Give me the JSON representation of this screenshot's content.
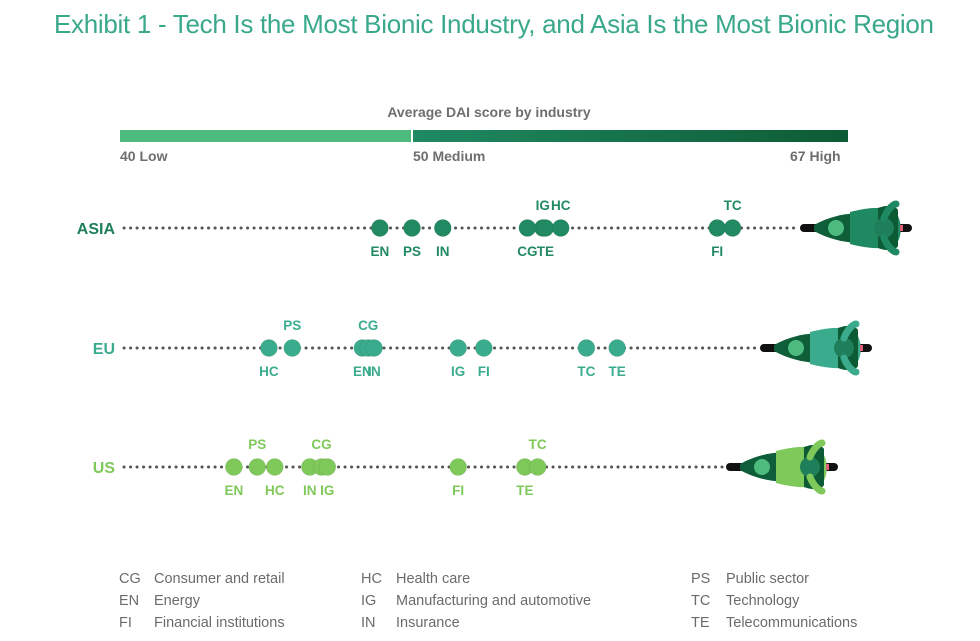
{
  "title": "Exhibit 1 - Tech Is the Most Bionic Industry, and Asia Is the Most Bionic Region",
  "chart_data": {
    "type": "scatter",
    "title": "Exhibit 1 - Tech Is the Most Bionic Industry, and Asia Is the Most Bionic Region",
    "subtitle": "Average DAI score by industry",
    "xlabel": "Average DAI score by industry",
    "ylabel": "",
    "xlim": [
      40,
      67
    ],
    "scale_labels": [
      {
        "value": 40,
        "label": "40 Low"
      },
      {
        "value": 50,
        "label": "50 Medium"
      },
      {
        "value": 67,
        "label": "67 High"
      }
    ],
    "series": [
      {
        "name": "ASIA",
        "color": "#218a62",
        "points": [
          {
            "code": "EN",
            "value": 48.9,
            "label_pos": "below"
          },
          {
            "code": "PS",
            "value": 50.0,
            "label_pos": "below"
          },
          {
            "code": "IN",
            "value": 51.2,
            "label_pos": "below"
          },
          {
            "code": "CG",
            "value": 54.5,
            "label_pos": "below"
          },
          {
            "code": "IG",
            "value": 55.1,
            "label_pos": "above"
          },
          {
            "code": "TE",
            "value": 55.2,
            "label_pos": "below"
          },
          {
            "code": "HC",
            "value": 55.8,
            "label_pos": "above"
          },
          {
            "code": "FI",
            "value": 61.9,
            "label_pos": "below"
          },
          {
            "code": "TC",
            "value": 62.5,
            "label_pos": "above"
          }
        ]
      },
      {
        "name": "EU",
        "color": "#3aab8d",
        "points": [
          {
            "code": "HC",
            "value": 45.1,
            "label_pos": "below"
          },
          {
            "code": "PS",
            "value": 45.9,
            "label_pos": "above"
          },
          {
            "code": "EN",
            "value": 48.3,
            "label_pos": "below"
          },
          {
            "code": "CG",
            "value": 48.5,
            "label_pos": "above"
          },
          {
            "code": "IN",
            "value": 48.7,
            "label_pos": "below"
          },
          {
            "code": "IG",
            "value": 51.8,
            "label_pos": "below"
          },
          {
            "code": "FI",
            "value": 52.8,
            "label_pos": "below"
          },
          {
            "code": "TC",
            "value": 56.8,
            "label_pos": "below"
          },
          {
            "code": "TE",
            "value": 58.0,
            "label_pos": "below"
          }
        ]
      },
      {
        "name": "US",
        "color": "#7ec95a",
        "points": [
          {
            "code": "EN",
            "value": 43.9,
            "label_pos": "below"
          },
          {
            "code": "PS",
            "value": 44.7,
            "label_pos": "above"
          },
          {
            "code": "HC",
            "value": 45.3,
            "label_pos": "below"
          },
          {
            "code": "IN",
            "value": 46.5,
            "label_pos": "below"
          },
          {
            "code": "CG",
            "value": 46.9,
            "label_pos": "above"
          },
          {
            "code": "IG",
            "value": 47.1,
            "label_pos": "below"
          },
          {
            "code": "FI",
            "value": 51.8,
            "label_pos": "below"
          },
          {
            "code": "TE",
            "value": 54.4,
            "label_pos": "below"
          },
          {
            "code": "TC",
            "value": 54.9,
            "label_pos": "above"
          }
        ]
      }
    ],
    "legend": [
      {
        "code": "CG",
        "name": "Consumer and retail"
      },
      {
        "code": "EN",
        "name": "Energy"
      },
      {
        "code": "FI",
        "name": "Financial institutions"
      },
      {
        "code": "HC",
        "name": "Health care"
      },
      {
        "code": "IG",
        "name": "Manufacturing and automotive"
      },
      {
        "code": "IN",
        "name": "Insurance"
      },
      {
        "code": "PS",
        "name": "Public sector"
      },
      {
        "code": "TC",
        "name": "Technology"
      },
      {
        "code": "TE",
        "name": "Telecommunications"
      }
    ],
    "legend_placement": "bottom",
    "grid": false
  },
  "scale": {
    "title": "Average DAI score by industry",
    "low": "40 Low",
    "medium": "50 Medium",
    "high": "67 High",
    "low_color": "#4dbb7d",
    "high_color_start": "#1f8a62",
    "high_color_end": "#0d5b35"
  },
  "legend": {
    "col1": [
      {
        "code": "CG",
        "name": "Consumer and retail"
      },
      {
        "code": "EN",
        "name": "Energy"
      },
      {
        "code": "FI",
        "name": "Financial institutions"
      }
    ],
    "col2": [
      {
        "code": "HC",
        "name": "Health care"
      },
      {
        "code": "IG",
        "name": "Manufacturing and automotive"
      },
      {
        "code": "IN",
        "name": "Insurance"
      }
    ],
    "col3": [
      {
        "code": "PS",
        "name": "Public sector"
      },
      {
        "code": "TC",
        "name": "Technology"
      },
      {
        "code": "TE",
        "name": "Telecommunications"
      }
    ]
  }
}
